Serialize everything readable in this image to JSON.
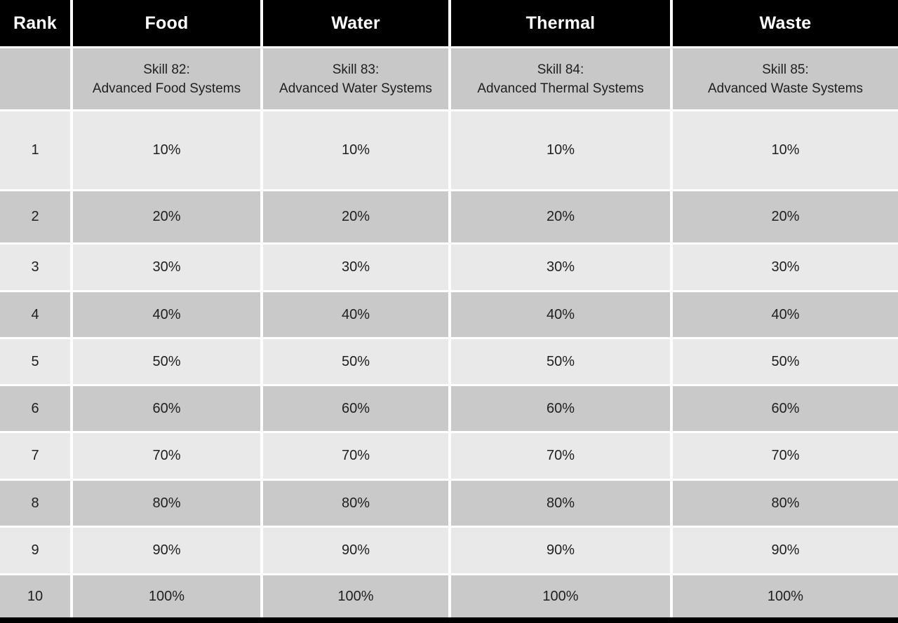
{
  "table": {
    "columns": [
      {
        "key": "rank",
        "header": "Rank",
        "skill_title": "",
        "skill_name": ""
      },
      {
        "key": "food",
        "header": "Food",
        "skill_title": "Skill 82:",
        "skill_name": "Advanced Food Systems"
      },
      {
        "key": "water",
        "header": "Water",
        "skill_title": "Skill 83:",
        "skill_name": "Advanced Water Systems"
      },
      {
        "key": "thermal",
        "header": "Thermal",
        "skill_title": "Skill 84:",
        "skill_name": "Advanced Thermal Systems"
      },
      {
        "key": "waste",
        "header": "Waste",
        "skill_title": "Skill 85:",
        "skill_name": "Advanced Waste Systems"
      }
    ],
    "rows": [
      {
        "rank": "1",
        "food": "10%",
        "water": "10%",
        "thermal": "10%",
        "waste": "10%"
      },
      {
        "rank": "2",
        "food": "20%",
        "water": "20%",
        "thermal": "20%",
        "waste": "20%"
      },
      {
        "rank": "3",
        "food": "30%",
        "water": "30%",
        "thermal": "30%",
        "waste": "30%"
      },
      {
        "rank": "4",
        "food": "40%",
        "water": "40%",
        "thermal": "40%",
        "waste": "40%"
      },
      {
        "rank": "5",
        "food": "50%",
        "water": "50%",
        "thermal": "50%",
        "waste": "50%"
      },
      {
        "rank": "6",
        "food": "60%",
        "water": "60%",
        "thermal": "60%",
        "waste": "60%"
      },
      {
        "rank": "7",
        "food": "70%",
        "water": "70%",
        "thermal": "70%",
        "waste": "70%"
      },
      {
        "rank": "8",
        "food": "80%",
        "water": "80%",
        "thermal": "80%",
        "waste": "80%"
      },
      {
        "rank": "9",
        "food": "90%",
        "water": "90%",
        "thermal": "90%",
        "waste": "90%"
      },
      {
        "rank": "10",
        "food": "100%",
        "water": "100%",
        "thermal": "100%",
        "waste": "100%"
      }
    ]
  },
  "colors": {
    "header_bg": "#000000",
    "header_text": "#ffffff",
    "skill_row_bg": "#c8c8c8",
    "row_light": "#e9e9e9",
    "row_dark": "#c9c9c9",
    "grid_line": "#ffffff",
    "cell_text": "#1f1f1f"
  }
}
